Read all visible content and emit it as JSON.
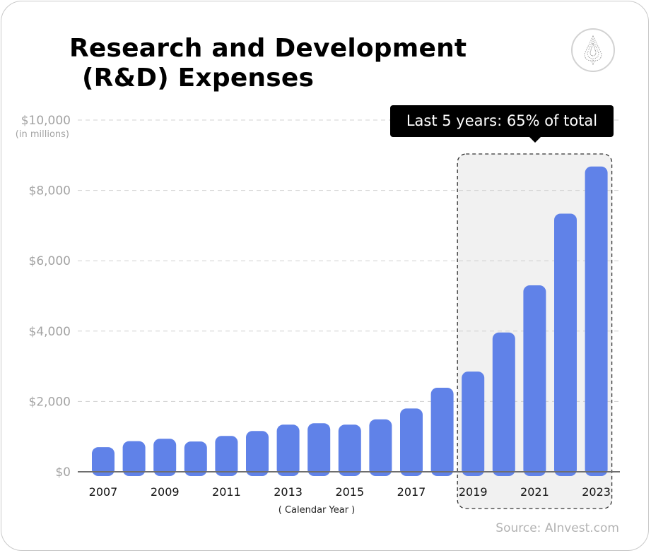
{
  "title_lines": [
    "Research and Development",
    "(R&D) Expenses"
  ],
  "source": "Source: AInvest.com",
  "logo": "ainvest-logo-icon",
  "callout": "Last 5 years: 65% of total",
  "colors": {
    "bar": "#6082e8",
    "highlight_bg": "#f1f1f1",
    "grid": "#d0d0d0",
    "axis": "#6e6e6e",
    "tick_text": "#a3a3a3"
  },
  "chart_data": {
    "type": "bar",
    "title": "Research and Development (R&D) Expenses",
    "xlabel": "( Calendar Year )",
    "ylabel": "(in millions)",
    "ylim": [
      0,
      10000
    ],
    "yticks": [
      0,
      2000,
      4000,
      6000,
      8000,
      10000
    ],
    "ytick_labels": [
      "$0",
      "$2,000",
      "$4,000",
      "$6,000",
      "$8,000",
      "$10,000"
    ],
    "categories": [
      "2007",
      "2008",
      "2009",
      "2010",
      "2011",
      "2012",
      "2013",
      "2014",
      "2015",
      "2016",
      "2017",
      "2018",
      "2019",
      "2020",
      "2021",
      "2022",
      "2023"
    ],
    "xtick_labels": [
      "2007",
      "2009",
      "2011",
      "2013",
      "2015",
      "2017",
      "2019",
      "2021",
      "2023"
    ],
    "values": [
      700,
      870,
      940,
      860,
      1020,
      1160,
      1340,
      1380,
      1340,
      1490,
      1800,
      2390,
      2850,
      3960,
      5300,
      7340,
      8680
    ],
    "highlight": {
      "from": "2019",
      "to": "2023",
      "label": "Last 5 years: 65% of total"
    },
    "grid": true,
    "units": "millions USD"
  }
}
